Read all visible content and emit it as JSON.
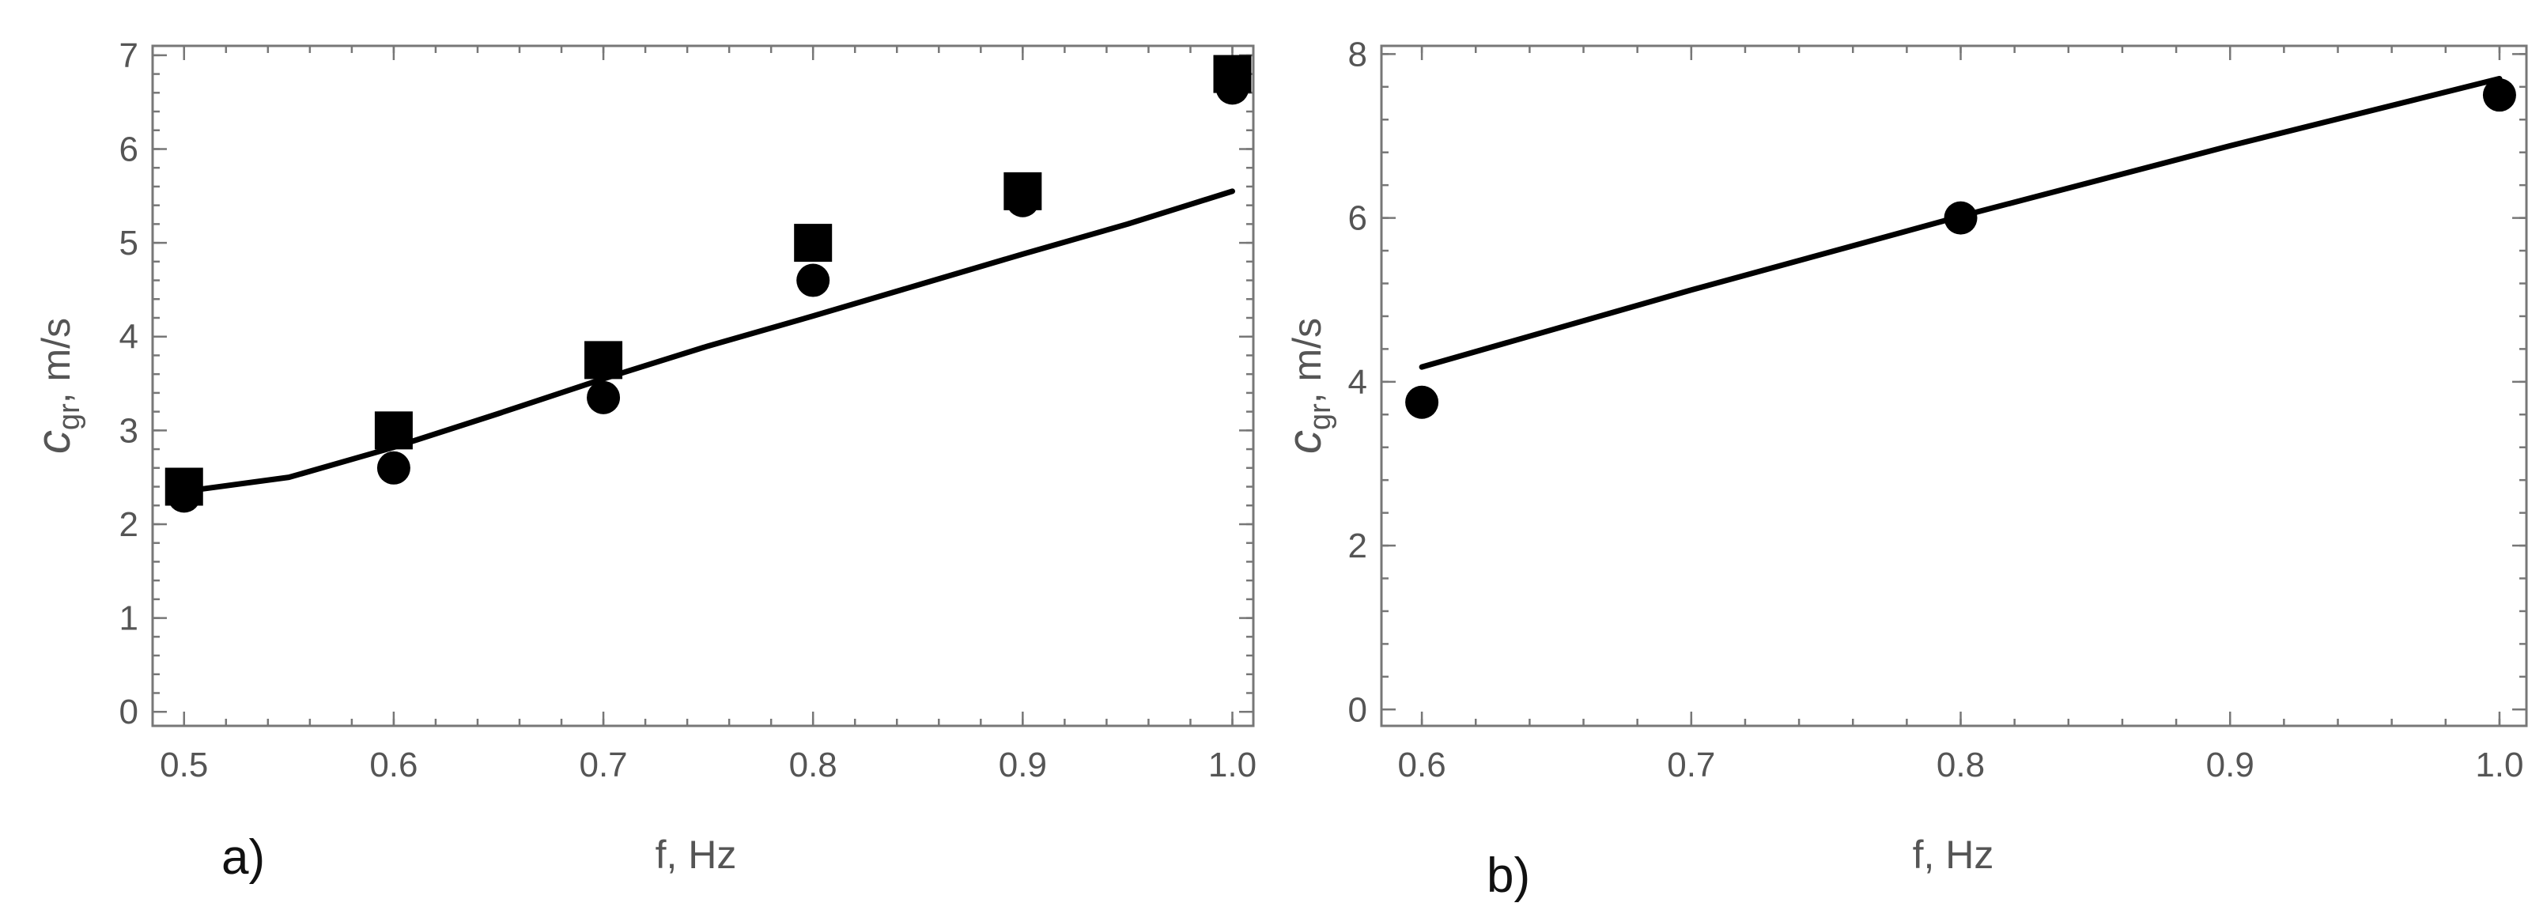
{
  "chart_data": [
    {
      "type": "scatter",
      "panel_label": "a)",
      "xlabel": "f, Hz",
      "ylabel_main": "c",
      "ylabel_sub": "gr",
      "ylabel_rest": ", m/s",
      "xlim": [
        0.485,
        1.01
      ],
      "ylim": [
        -0.15,
        7.1
      ],
      "xticks": [
        0.5,
        0.6,
        0.7,
        0.8,
        0.9,
        1.0
      ],
      "xtick_labels": [
        "0.5",
        "0.6",
        "0.7",
        "0.8",
        "0.9",
        "1.0"
      ],
      "yticks": [
        0,
        1,
        2,
        3,
        4,
        5,
        6,
        7
      ],
      "ytick_labels": [
        "0",
        "1",
        "2",
        "3",
        "4",
        "5",
        "6",
        "7"
      ],
      "x_minor_step": 0.02,
      "y_minor_step": 0.2,
      "series": [
        {
          "marker": "circle",
          "color": "#000000",
          "x": [
            0.5,
            0.6,
            0.7,
            0.8,
            0.9,
            1.0
          ],
          "y": [
            2.3,
            2.6,
            3.35,
            4.6,
            5.45,
            6.65
          ]
        },
        {
          "marker": "square",
          "color": "#000000",
          "x": [
            0.5,
            0.6,
            0.7,
            0.8,
            0.9,
            1.0
          ],
          "y": [
            2.4,
            3.0,
            3.75,
            5.0,
            5.55,
            6.8
          ]
        },
        {
          "marker": "line",
          "color": "#000000",
          "x": [
            0.5,
            0.55,
            0.6,
            0.65,
            0.7,
            0.75,
            0.8,
            0.85,
            0.9,
            0.95,
            1.0
          ],
          "y": [
            2.35,
            2.5,
            2.82,
            3.18,
            3.55,
            3.9,
            4.22,
            4.55,
            4.88,
            5.2,
            5.55
          ]
        }
      ]
    },
    {
      "type": "scatter",
      "panel_label": "b)",
      "xlabel": "f, Hz",
      "ylabel_main": "c",
      "ylabel_sub": "gr",
      "ylabel_rest": ", m/s",
      "xlim": [
        0.585,
        1.01
      ],
      "ylim": [
        -0.2,
        8.1
      ],
      "xticks": [
        0.6,
        0.7,
        0.8,
        0.9,
        1.0
      ],
      "xtick_labels": [
        "0.6",
        "0.7",
        "0.8",
        "0.9",
        "1.0"
      ],
      "yticks": [
        0,
        2,
        4,
        6,
        8
      ],
      "ytick_labels": [
        "0",
        "2",
        "4",
        "6",
        "8"
      ],
      "x_minor_step": 0.02,
      "y_minor_step": 0.4,
      "series": [
        {
          "marker": "circle",
          "color": "#000000",
          "x": [
            0.6,
            0.8,
            1.0
          ],
          "y": [
            3.75,
            6.0,
            7.5
          ]
        },
        {
          "marker": "line",
          "color": "#000000",
          "x": [
            0.6,
            0.7,
            0.8,
            0.9,
            1.0
          ],
          "y": [
            4.18,
            5.12,
            6.02,
            6.88,
            7.7
          ]
        }
      ]
    }
  ]
}
